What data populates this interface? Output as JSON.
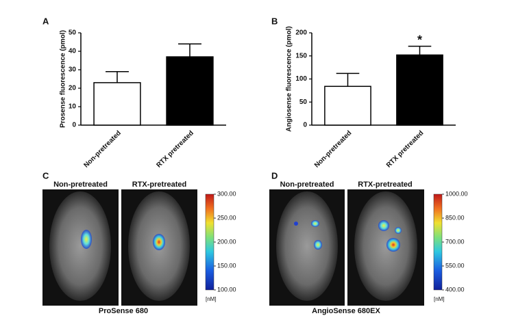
{
  "chart_data": [
    {
      "type": "bar",
      "panel": "A",
      "ylabel": "Prosense fluorescence (pmol)",
      "categories": [
        "Non-pretreated",
        "RTX pretreated"
      ],
      "values": [
        23,
        37
      ],
      "errors": [
        6,
        7
      ],
      "colors": [
        "#ffffff",
        "#000000"
      ],
      "ylim": [
        0,
        50
      ],
      "yticks": [
        0,
        10,
        20,
        30,
        40,
        50
      ]
    },
    {
      "type": "bar",
      "panel": "B",
      "ylabel": "Angiosense fluorescence (pmol)",
      "categories": [
        "Non-pretreated",
        "RTX pretreated"
      ],
      "values": [
        84,
        152
      ],
      "errors": [
        28,
        19
      ],
      "colors": [
        "#ffffff",
        "#000000"
      ],
      "ylim": [
        0,
        200
      ],
      "yticks": [
        0,
        50,
        100,
        150,
        200
      ],
      "annotations": [
        {
          "category": 1,
          "text": "*"
        }
      ]
    }
  ],
  "images": [
    {
      "panel": "C",
      "labels": [
        "Non-pretreated",
        "RTX-pretreated"
      ],
      "caption": "ProSense 680",
      "colorbar": {
        "lim": [
          100,
          300
        ],
        "unit": "[nM]",
        "ticks": [
          {
            "value": 300,
            "label": "300.00"
          },
          {
            "value": 250,
            "label": "250.00"
          },
          {
            "value": 200,
            "label": "200.00"
          },
          {
            "value": 150,
            "label": "150.00"
          },
          {
            "value": 100,
            "label": "100.00"
          }
        ]
      }
    },
    {
      "panel": "D",
      "labels": [
        "Non-pretreated",
        "RTX-pretreated"
      ],
      "caption": "AngioSense 680EX",
      "colorbar": {
        "lim": [
          400,
          1000
        ],
        "unit": "[nM]",
        "ticks": [
          {
            "value": 1000,
            "label": "1000.00"
          },
          {
            "value": 850,
            "label": "850.00"
          },
          {
            "value": 700,
            "label": "700.00"
          },
          {
            "value": 550,
            "label": "550.00"
          },
          {
            "value": 400,
            "label": "400.00"
          }
        ]
      }
    }
  ]
}
